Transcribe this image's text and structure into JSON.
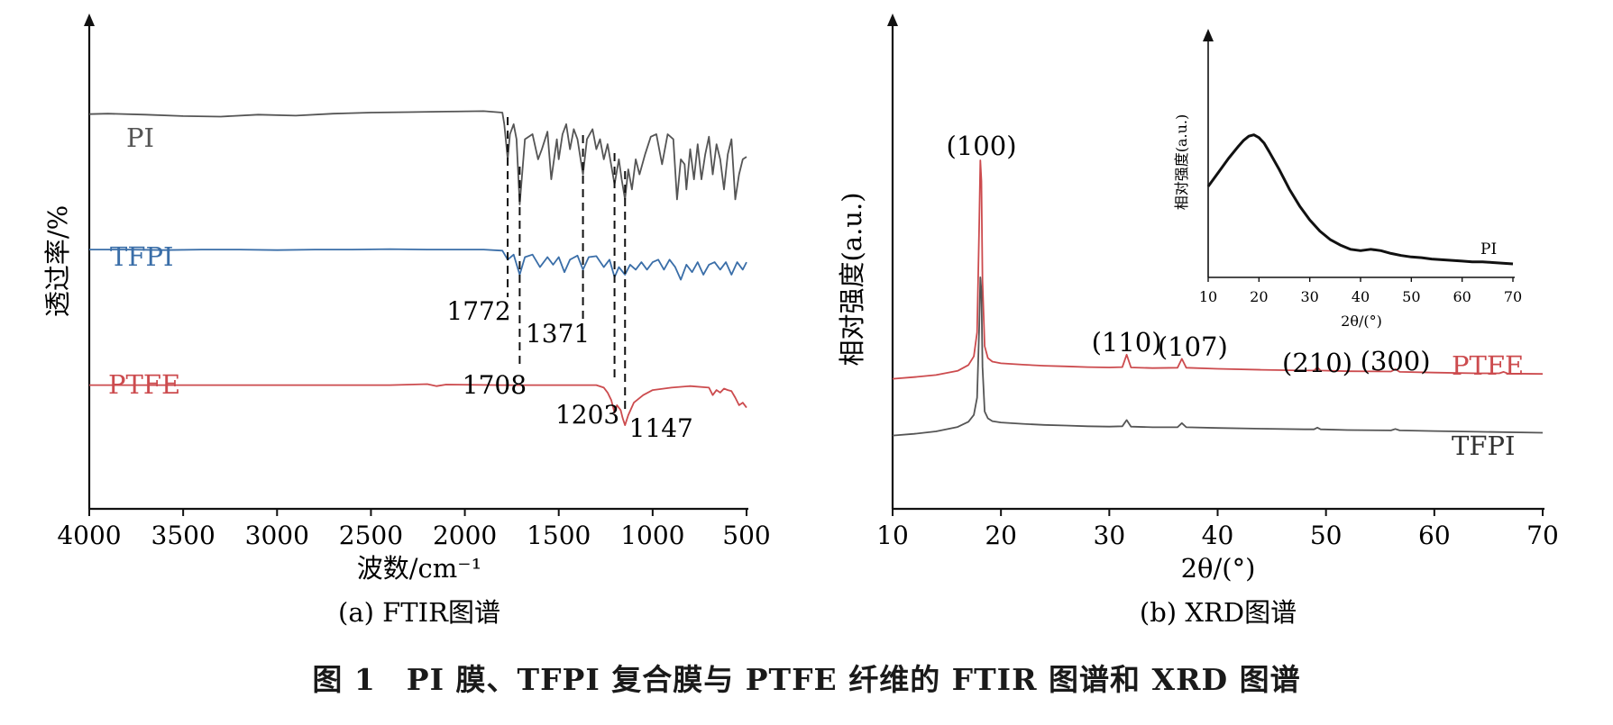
{
  "figure": {
    "caption": "图 1　PI 膜、TFPI 复合膜与 PTFE 纤维的 FTIR 图谱和 XRD 图谱"
  },
  "chart_data": [
    {
      "type": "line",
      "subcaption": "(a) FTIR图谱",
      "xlabel": "波数/cm⁻¹",
      "ylabel": "透过率/%",
      "xlim": [
        4000,
        500
      ],
      "x_reversed": true,
      "x_ticks": [
        "4000",
        "3500",
        "3000",
        "2500",
        "2000",
        "1500",
        "1000",
        "500"
      ],
      "y_ticks": [],
      "grid": false,
      "series": [
        {
          "name": "PI",
          "color": "#555555",
          "x": [
            4000,
            3900,
            3700,
            3500,
            3300,
            3100,
            2900,
            2700,
            2500,
            2300,
            2100,
            1900,
            1800,
            1790,
            1772,
            1760,
            1740,
            1725,
            1708,
            1695,
            1680,
            1640,
            1610,
            1590,
            1560,
            1540,
            1510,
            1500,
            1480,
            1460,
            1440,
            1420,
            1400,
            1371,
            1350,
            1320,
            1300,
            1280,
            1260,
            1240,
            1203,
            1180,
            1165,
            1147,
            1130,
            1110,
            1090,
            1070,
            1040,
            1010,
            980,
            950,
            920,
            890,
            870,
            850,
            830,
            820,
            800,
            780,
            760,
            740,
            720,
            700,
            680,
            660,
            640,
            620,
            600,
            580,
            560,
            540,
            520,
            500
          ],
          "y": [
            97.0,
            97.1,
            96.9,
            96.6,
            96.5,
            96.9,
            96.7,
            97.1,
            97.3,
            97.4,
            97.5,
            97.6,
            97.3,
            95.0,
            88.0,
            93.0,
            95.0,
            92.0,
            79.0,
            85.0,
            92.0,
            93.0,
            88.0,
            90.0,
            93.5,
            84.0,
            92.0,
            88.0,
            93.0,
            95.0,
            90.0,
            94.0,
            92.0,
            85.0,
            92.0,
            94.0,
            90.0,
            92.0,
            88.0,
            91.0,
            83.0,
            88.0,
            84.0,
            80.0,
            86.0,
            82.0,
            88.0,
            85.0,
            89.0,
            92.5,
            93.0,
            87.0,
            93.0,
            92.0,
            80.0,
            88.0,
            87.0,
            82.0,
            90.0,
            84.0,
            91.0,
            84.0,
            89.0,
            92.5,
            85.0,
            91.0,
            88.0,
            82.0,
            89.0,
            92.0,
            80.0,
            85.0,
            88.0,
            88.5
          ]
        },
        {
          "name": "TFPI",
          "color": "#3a6ea8",
          "x": [
            4000,
            3800,
            3600,
            3400,
            3200,
            3000,
            2800,
            2600,
            2400,
            2200,
            2000,
            1900,
            1800,
            1772,
            1740,
            1708,
            1680,
            1640,
            1600,
            1560,
            1530,
            1500,
            1470,
            1440,
            1400,
            1371,
            1340,
            1300,
            1260,
            1230,
            1203,
            1180,
            1147,
            1120,
            1090,
            1060,
            1030,
            1000,
            970,
            940,
            910,
            880,
            850,
            820,
            790,
            760,
            730,
            700,
            670,
            640,
            610,
            580,
            550,
            520,
            500
          ],
          "y": [
            70.0,
            70.0,
            69.9,
            70.0,
            70.0,
            69.9,
            70.0,
            70.0,
            70.1,
            70.0,
            70.0,
            70.0,
            69.8,
            68.0,
            69.0,
            65.0,
            68.5,
            69.0,
            66.5,
            68.5,
            67.0,
            68.5,
            65.5,
            68.0,
            68.8,
            66.0,
            68.5,
            68.7,
            66.5,
            68.0,
            64.5,
            66.5,
            65.0,
            67.0,
            66.0,
            67.5,
            66.0,
            67.5,
            68.0,
            66.0,
            68.0,
            66.5,
            64.0,
            67.0,
            65.5,
            67.5,
            65.0,
            67.0,
            67.5,
            66.0,
            67.5,
            65.0,
            67.5,
            66.0,
            67.5
          ]
        },
        {
          "name": "PTFE",
          "color": "#cc4b4e",
          "x": [
            4000,
            3600,
            3200,
            2800,
            2400,
            2200,
            2150,
            2100,
            1800,
            1500,
            1300,
            1260,
            1240,
            1220,
            1203,
            1190,
            1170,
            1160,
            1147,
            1130,
            1100,
            1050,
            1000,
            900,
            800,
            700,
            680,
            660,
            640,
            620,
            600,
            580,
            560,
            540,
            520,
            500
          ],
          "y": [
            43.0,
            43.0,
            43.0,
            43.0,
            43.0,
            43.2,
            42.8,
            43.1,
            43.0,
            43.0,
            43.0,
            42.5,
            41.5,
            40.0,
            37.5,
            39.0,
            38.0,
            36.5,
            35.0,
            37.0,
            39.5,
            41.0,
            42.0,
            42.5,
            42.8,
            42.5,
            41.0,
            42.0,
            41.5,
            42.3,
            42.0,
            41.8,
            40.5,
            39.0,
            39.5,
            38.5
          ]
        }
      ],
      "series_labels": [
        "PI",
        "TFPI",
        "PTFE"
      ],
      "annotations": [
        {
          "text": "1772",
          "x": 1772
        },
        {
          "text": "1708",
          "x": 1708
        },
        {
          "text": "1371",
          "x": 1371
        },
        {
          "text": "1203",
          "x": 1203
        },
        {
          "text": "1147",
          "x": 1147
        }
      ]
    },
    {
      "type": "line",
      "subcaption": "(b) XRD图谱",
      "xlabel": "2θ/(°)",
      "ylabel": "相对强度(a.u.)",
      "xlim": [
        10,
        70
      ],
      "x_ticks": [
        "10",
        "20",
        "30",
        "40",
        "50",
        "60",
        "70"
      ],
      "y_ticks": [],
      "grid": false,
      "series": [
        {
          "name": "PTFE",
          "color": "#cc4b4e",
          "x": [
            10,
            12,
            14,
            16,
            17,
            17.5,
            17.8,
            18.0,
            18.1,
            18.2,
            18.3,
            18.5,
            18.8,
            19.2,
            20,
            22,
            24,
            26,
            28,
            30,
            31.2,
            31.6,
            32.0,
            34,
            36.3,
            36.7,
            37.1,
            40,
            44,
            48,
            48.9,
            49.2,
            49.5,
            52,
            56.0,
            56.4,
            56.8,
            60,
            64,
            66.0,
            66.4,
            66.8,
            70
          ],
          "y": [
            36.5,
            37.0,
            37.6,
            38.8,
            40.5,
            43.0,
            50.0,
            82.0,
            100.0,
            94.0,
            65.0,
            46.0,
            42.5,
            41.5,
            41.0,
            40.6,
            40.3,
            40.1,
            39.9,
            39.8,
            39.9,
            43.5,
            39.8,
            39.6,
            39.7,
            42.3,
            39.7,
            39.4,
            39.1,
            38.9,
            38.9,
            39.8,
            38.9,
            38.7,
            38.6,
            39.3,
            38.5,
            38.3,
            38.1,
            38.1,
            38.5,
            38.0,
            37.9
          ]
        },
        {
          "name": "TFPI",
          "color": "#555555",
          "x": [
            10,
            12,
            14,
            16,
            17,
            17.5,
            17.8,
            18.0,
            18.1,
            18.2,
            18.3,
            18.5,
            18.8,
            19.2,
            20,
            22,
            24,
            26,
            28,
            30,
            31.2,
            31.6,
            32.0,
            34,
            36.3,
            36.7,
            37.1,
            40,
            44,
            48,
            48.9,
            49.2,
            49.5,
            52,
            56.0,
            56.4,
            56.8,
            60,
            64,
            70
          ],
          "y": [
            20.0,
            20.5,
            21.2,
            22.5,
            24.0,
            26.0,
            31.0,
            52.0,
            66.0,
            62.0,
            40.0,
            27.0,
            25.0,
            24.2,
            23.8,
            23.4,
            23.1,
            22.9,
            22.7,
            22.6,
            22.7,
            24.5,
            22.6,
            22.4,
            22.4,
            23.6,
            22.4,
            22.2,
            22.0,
            21.8,
            21.8,
            22.3,
            21.8,
            21.6,
            21.5,
            21.9,
            21.5,
            21.3,
            21.1,
            20.8
          ]
        }
      ],
      "series_labels": [
        "PTFE",
        "TFPI"
      ],
      "annotations": [
        {
          "text": "(100)",
          "x": 18.2
        },
        {
          "text": "(110)",
          "x": 31.6
        },
        {
          "text": "(107)",
          "x": 36.7
        },
        {
          "text": "(210)",
          "x": 49.2
        },
        {
          "text": "(300)",
          "x": 56.4
        }
      ],
      "inset": {
        "type": "line",
        "xlabel": "2θ/(°)",
        "ylabel": "相对强度(a.u.)",
        "xlim": [
          10,
          70
        ],
        "x_ticks": [
          "10",
          "20",
          "30",
          "40",
          "50",
          "60",
          "70"
        ],
        "series": [
          {
            "name": "PI",
            "color": "#111111",
            "x": [
              10,
              12,
              14,
              16,
              17,
              18,
              19,
              20,
              21,
              22,
              24,
              26,
              28,
              30,
              32,
              34,
              36,
              38,
              40,
              42,
              44,
              46,
              48,
              50,
              52,
              54,
              56,
              58,
              60,
              62,
              64,
              66,
              68,
              70
            ],
            "y": [
              60,
              70,
              80,
              89,
              93,
              96,
              97,
              95,
              91,
              85,
              72,
              58,
              46,
              36,
              28,
              22,
              18,
              15,
              14,
              15,
              14,
              12,
              10.5,
              9.5,
              9,
              8,
              7.5,
              7,
              6.5,
              6,
              6,
              5.5,
              5,
              4.5
            ]
          }
        ]
      }
    }
  ]
}
